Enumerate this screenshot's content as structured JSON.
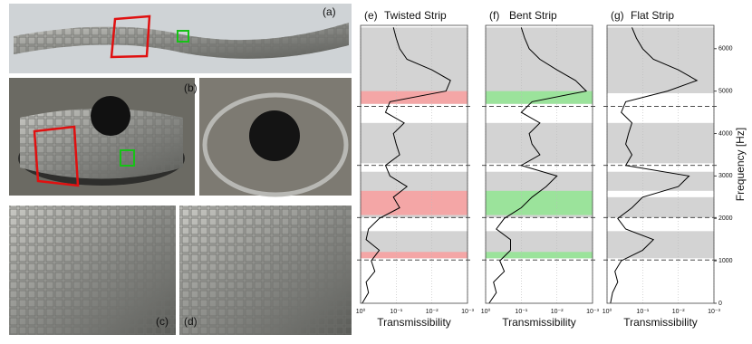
{
  "photos": {
    "labels": [
      "(a)",
      "(b)",
      "(c)",
      "(d)"
    ]
  },
  "chart_data": [
    {
      "type": "line",
      "label": "(e)",
      "title": "Twisted Strip",
      "xlabel": "Transmissibility",
      "xscale": "log",
      "xlim": [
        1,
        0.001
      ],
      "xticks": [
        {
          "value": 1,
          "label": "10⁰"
        },
        {
          "value": 0.1,
          "label": "10⁻¹"
        },
        {
          "value": 0.01,
          "label": "10⁻²"
        },
        {
          "value": 0.001,
          "label": "10⁻³"
        }
      ],
      "ylim": [
        0,
        6550
      ],
      "dashed_lines": [
        4640,
        3250,
        2020,
        1020
      ],
      "gray_bands": [
        {
          "from": 4700,
          "to": 6500
        },
        {
          "from": 3300,
          "to": 4250
        },
        {
          "from": 2020,
          "to": 3100
        },
        {
          "from": 1060,
          "to": 1700
        }
      ],
      "highlight_color": "#f4a6a6",
      "highlight_bands": [
        {
          "from": 4700,
          "to": 5000
        },
        {
          "from": 2080,
          "to": 2650
        },
        {
          "from": 1060,
          "to": 1210
        }
      ],
      "series": [
        {
          "color": "#000000",
          "x": [
            0,
            250,
            500,
            750,
            1000,
            1250,
            1500,
            1750,
            2000,
            2250,
            2500,
            2750,
            3000,
            3250,
            3500,
            3750,
            4000,
            4250,
            4500,
            4750,
            5000,
            5250,
            5500,
            5750,
            6000,
            6250,
            6500
          ],
          "values": [
            0.9,
            0.6,
            0.7,
            0.4,
            0.5,
            0.3,
            0.7,
            0.6,
            0.3,
            0.08,
            0.12,
            0.05,
            0.15,
            0.2,
            0.08,
            0.1,
            0.12,
            0.06,
            0.2,
            0.15,
            0.004,
            0.003,
            0.01,
            0.05,
            0.08,
            0.1,
            0.12
          ]
        }
      ]
    },
    {
      "type": "line",
      "label": "(f)",
      "title": "Bent Strip",
      "xlabel": "Transmissibility",
      "xscale": "log",
      "xlim": [
        1,
        0.001
      ],
      "xticks": [
        {
          "value": 1,
          "label": "10⁰"
        },
        {
          "value": 0.1,
          "label": "10⁻¹"
        },
        {
          "value": 0.01,
          "label": "10⁻²"
        },
        {
          "value": 0.001,
          "label": "10⁻³"
        }
      ],
      "ylim": [
        0,
        6550
      ],
      "dashed_lines": [
        4640,
        3250,
        2020,
        1020
      ],
      "gray_bands": [
        {
          "from": 4700,
          "to": 6500
        },
        {
          "from": 3300,
          "to": 4250
        },
        {
          "from": 2020,
          "to": 3100
        },
        {
          "from": 1060,
          "to": 1700
        }
      ],
      "highlight_color": "#9be39b",
      "highlight_bands": [
        {
          "from": 4700,
          "to": 5000
        },
        {
          "from": 2080,
          "to": 2650
        },
        {
          "from": 1060,
          "to": 1210
        }
      ],
      "series": [
        {
          "color": "#000000",
          "x": [
            0,
            250,
            500,
            750,
            1000,
            1250,
            1500,
            1750,
            2000,
            2250,
            2500,
            2750,
            3000,
            3250,
            3500,
            3750,
            4000,
            4250,
            4500,
            4750,
            5000,
            5250,
            5500,
            5750,
            6000,
            6250,
            6500
          ],
          "values": [
            0.8,
            0.5,
            0.6,
            0.3,
            0.4,
            0.2,
            0.2,
            0.5,
            0.3,
            0.1,
            0.05,
            0.02,
            0.01,
            0.1,
            0.03,
            0.05,
            0.06,
            0.03,
            0.1,
            0.05,
            0.0015,
            0.003,
            0.01,
            0.03,
            0.06,
            0.08,
            0.1
          ]
        }
      ]
    },
    {
      "type": "line",
      "label": "(g)",
      "title": "Flat Strip",
      "xlabel": "Transmissibility",
      "xscale": "log",
      "xlim": [
        1,
        0.001
      ],
      "xticks": [
        {
          "value": 1,
          "label": "10⁰"
        },
        {
          "value": 0.1,
          "label": "10⁻¹"
        },
        {
          "value": 0.01,
          "label": "10⁻²"
        },
        {
          "value": 0.001,
          "label": "10⁻³"
        }
      ],
      "ylim": [
        0,
        6550
      ],
      "dashed_lines": [
        4640,
        3250,
        2020,
        1020
      ],
      "gray_bands": [
        {
          "from": 4950,
          "to": 6500
        },
        {
          "from": 3300,
          "to": 4250
        },
        {
          "from": 2650,
          "to": 3100
        },
        {
          "from": 2020,
          "to": 2500
        },
        {
          "from": 1060,
          "to": 1700
        }
      ],
      "ylabel": "Frequency [Hz]",
      "yticks": [
        0,
        1000,
        2000,
        3000,
        4000,
        5000,
        6000
      ],
      "series": [
        {
          "color": "#000000",
          "x": [
            0,
            250,
            500,
            750,
            1000,
            1250,
            1500,
            1750,
            2000,
            2250,
            2500,
            2750,
            3000,
            3250,
            3500,
            3750,
            4000,
            4250,
            4500,
            4750,
            5000,
            5250,
            5500,
            5750,
            6000,
            6250,
            6500
          ],
          "values": [
            0.8,
            0.7,
            0.5,
            0.6,
            0.4,
            0.1,
            0.05,
            0.3,
            0.5,
            0.2,
            0.1,
            0.01,
            0.005,
            0.3,
            0.2,
            0.3,
            0.25,
            0.2,
            0.4,
            0.3,
            0.02,
            0.003,
            0.01,
            0.05,
            0.1,
            0.15,
            0.2
          ]
        }
      ]
    }
  ]
}
